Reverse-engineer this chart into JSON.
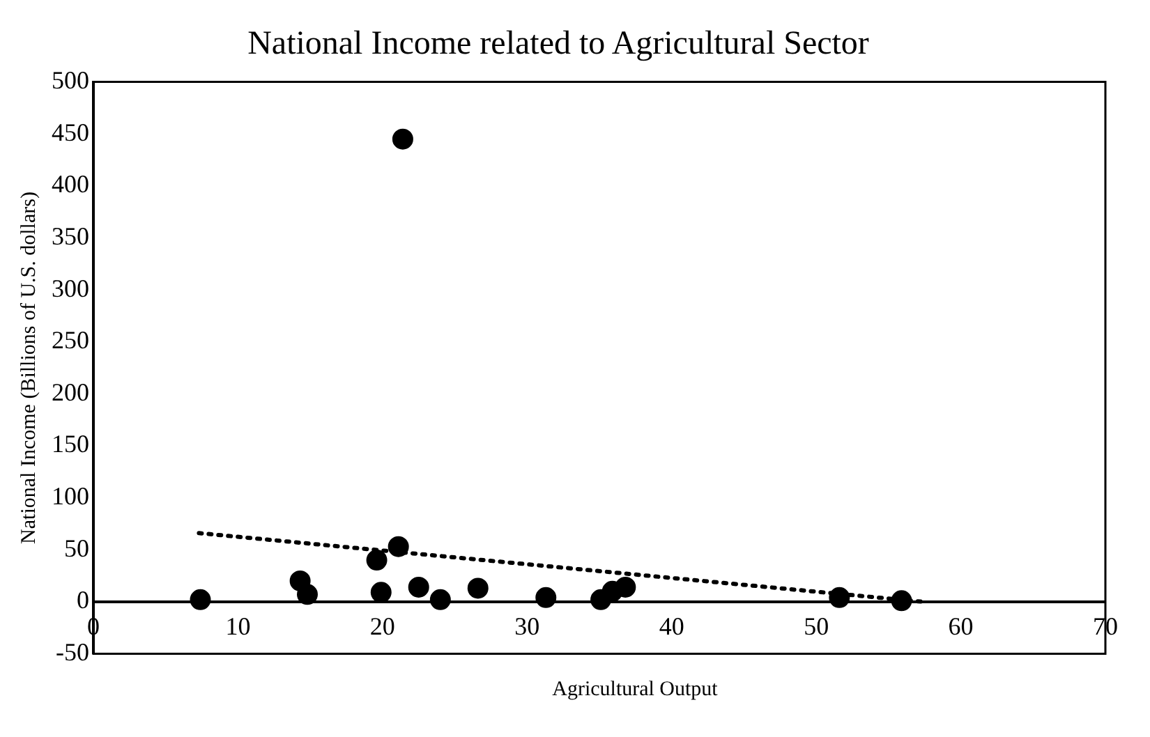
{
  "chart_data": {
    "type": "scatter",
    "title": "National Income related to Agricultural Sector",
    "xlabel": "Agricultural Output",
    "ylabel": "National Income (Billions of U.S. dollars)",
    "xlim": [
      0,
      70
    ],
    "xticks": [
      0,
      10,
      20,
      30,
      40,
      50,
      60,
      70
    ],
    "ylim": [
      -50,
      500
    ],
    "yticks": [
      -50,
      0,
      50,
      100,
      150,
      200,
      250,
      300,
      350,
      400,
      450,
      500
    ],
    "grid": false,
    "legend": false,
    "marker": "circle",
    "series": [
      {
        "type": "scatter",
        "color": "#000000",
        "x": [
          7.4,
          14.3,
          14.8,
          19.6,
          19.9,
          21.1,
          21.4,
          22.5,
          24.0,
          26.6,
          31.3,
          35.1,
          35.9,
          36.8,
          51.6,
          55.9
        ],
        "values": [
          2,
          20,
          7,
          40,
          9,
          53,
          445,
          14,
          2,
          13,
          4,
          2,
          10,
          14,
          4,
          1
        ]
      },
      {
        "type": "line",
        "color": "#000000",
        "line_style": "dotted",
        "marker": "none",
        "x": [
          7.3,
          57.3
        ],
        "values": [
          66,
          0
        ]
      }
    ]
  }
}
